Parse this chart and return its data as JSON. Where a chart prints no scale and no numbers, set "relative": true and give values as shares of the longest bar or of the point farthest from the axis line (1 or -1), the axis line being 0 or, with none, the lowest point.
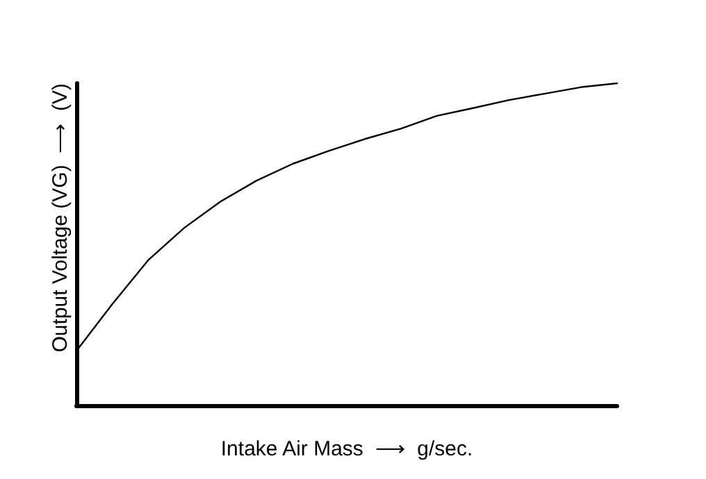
{
  "chart_data": {
    "type": "line",
    "xlabel": "Intake Air Mass  ⟶  g/sec.",
    "ylabel": "Output Voltage (VG)  ⟶  (V)",
    "relative": true,
    "grid": false,
    "marker": "none",
    "line_style": "solid",
    "categories": [
      null,
      null,
      null,
      null,
      null,
      null,
      null,
      null,
      null,
      null,
      null,
      null,
      null,
      null,
      null,
      null
    ],
    "series": [
      {
        "color": "#000000",
        "values": [
          0.169,
          0.315,
          0.452,
          0.552,
          0.633,
          0.698,
          0.75,
          0.79,
          0.827,
          0.859,
          0.899,
          0.923,
          0.948,
          0.968,
          0.988,
          1
        ]
      }
    ]
  }
}
